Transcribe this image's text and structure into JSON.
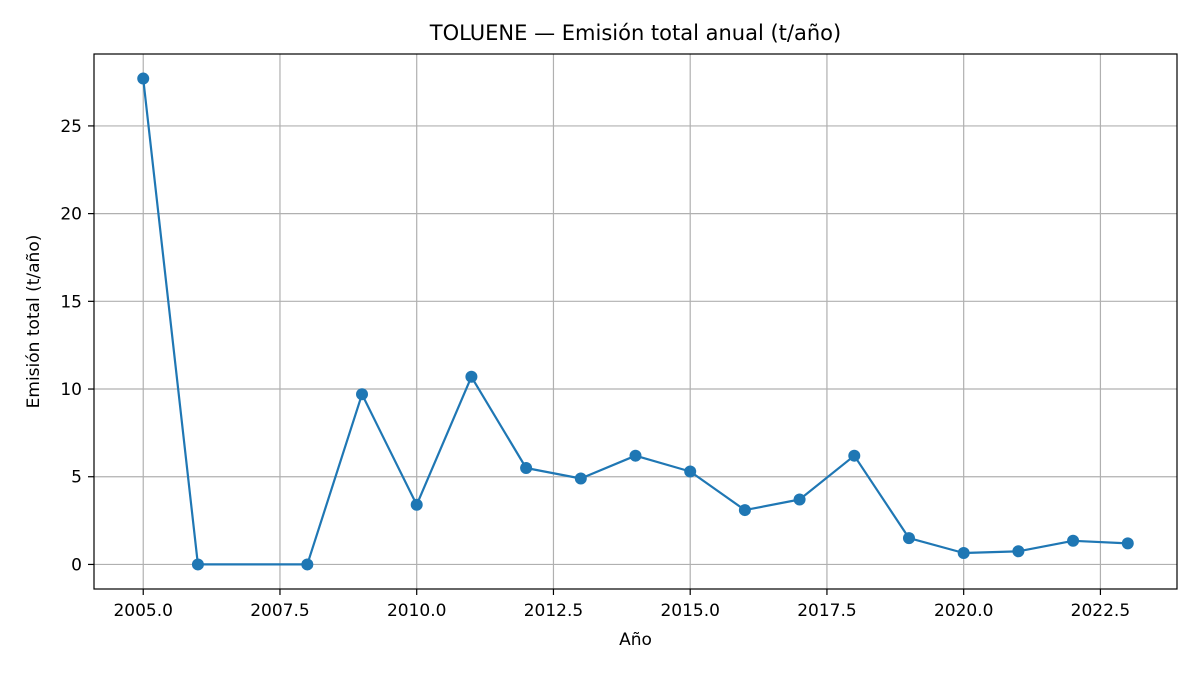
{
  "chart_data": {
    "type": "line",
    "title": "TOLUENE — Emisión total anual (t/año)",
    "xlabel": "Año",
    "ylabel": "Emisión total (t/año)",
    "xlim": [
      2004.1,
      2023.9
    ],
    "ylim": [
      -1.4,
      29.1
    ],
    "xticks": [
      2005.0,
      2007.5,
      2010.0,
      2012.5,
      2015.0,
      2017.5,
      2020.0,
      2022.5
    ],
    "xtick_labels": [
      "2005.0",
      "2007.5",
      "2010.0",
      "2012.5",
      "2015.0",
      "2017.5",
      "2020.0",
      "2022.5"
    ],
    "yticks": [
      0,
      5,
      10,
      15,
      20,
      25
    ],
    "ytick_labels": [
      "0",
      "5",
      "10",
      "15",
      "20",
      "25"
    ],
    "grid": true,
    "series": [
      {
        "color": "#1f77b4",
        "marker": "circle",
        "x": [
          2005,
          2006,
          2008,
          2009,
          2010,
          2011,
          2012,
          2013,
          2014,
          2015,
          2016,
          2017,
          2018,
          2019,
          2020,
          2021,
          2022,
          2023
        ],
        "y": [
          27.7,
          0.0,
          0.0,
          9.7,
          3.4,
          10.7,
          5.5,
          4.9,
          6.2,
          5.3,
          3.1,
          3.7,
          6.2,
          1.5,
          0.65,
          0.75,
          1.35,
          1.2
        ]
      }
    ]
  }
}
